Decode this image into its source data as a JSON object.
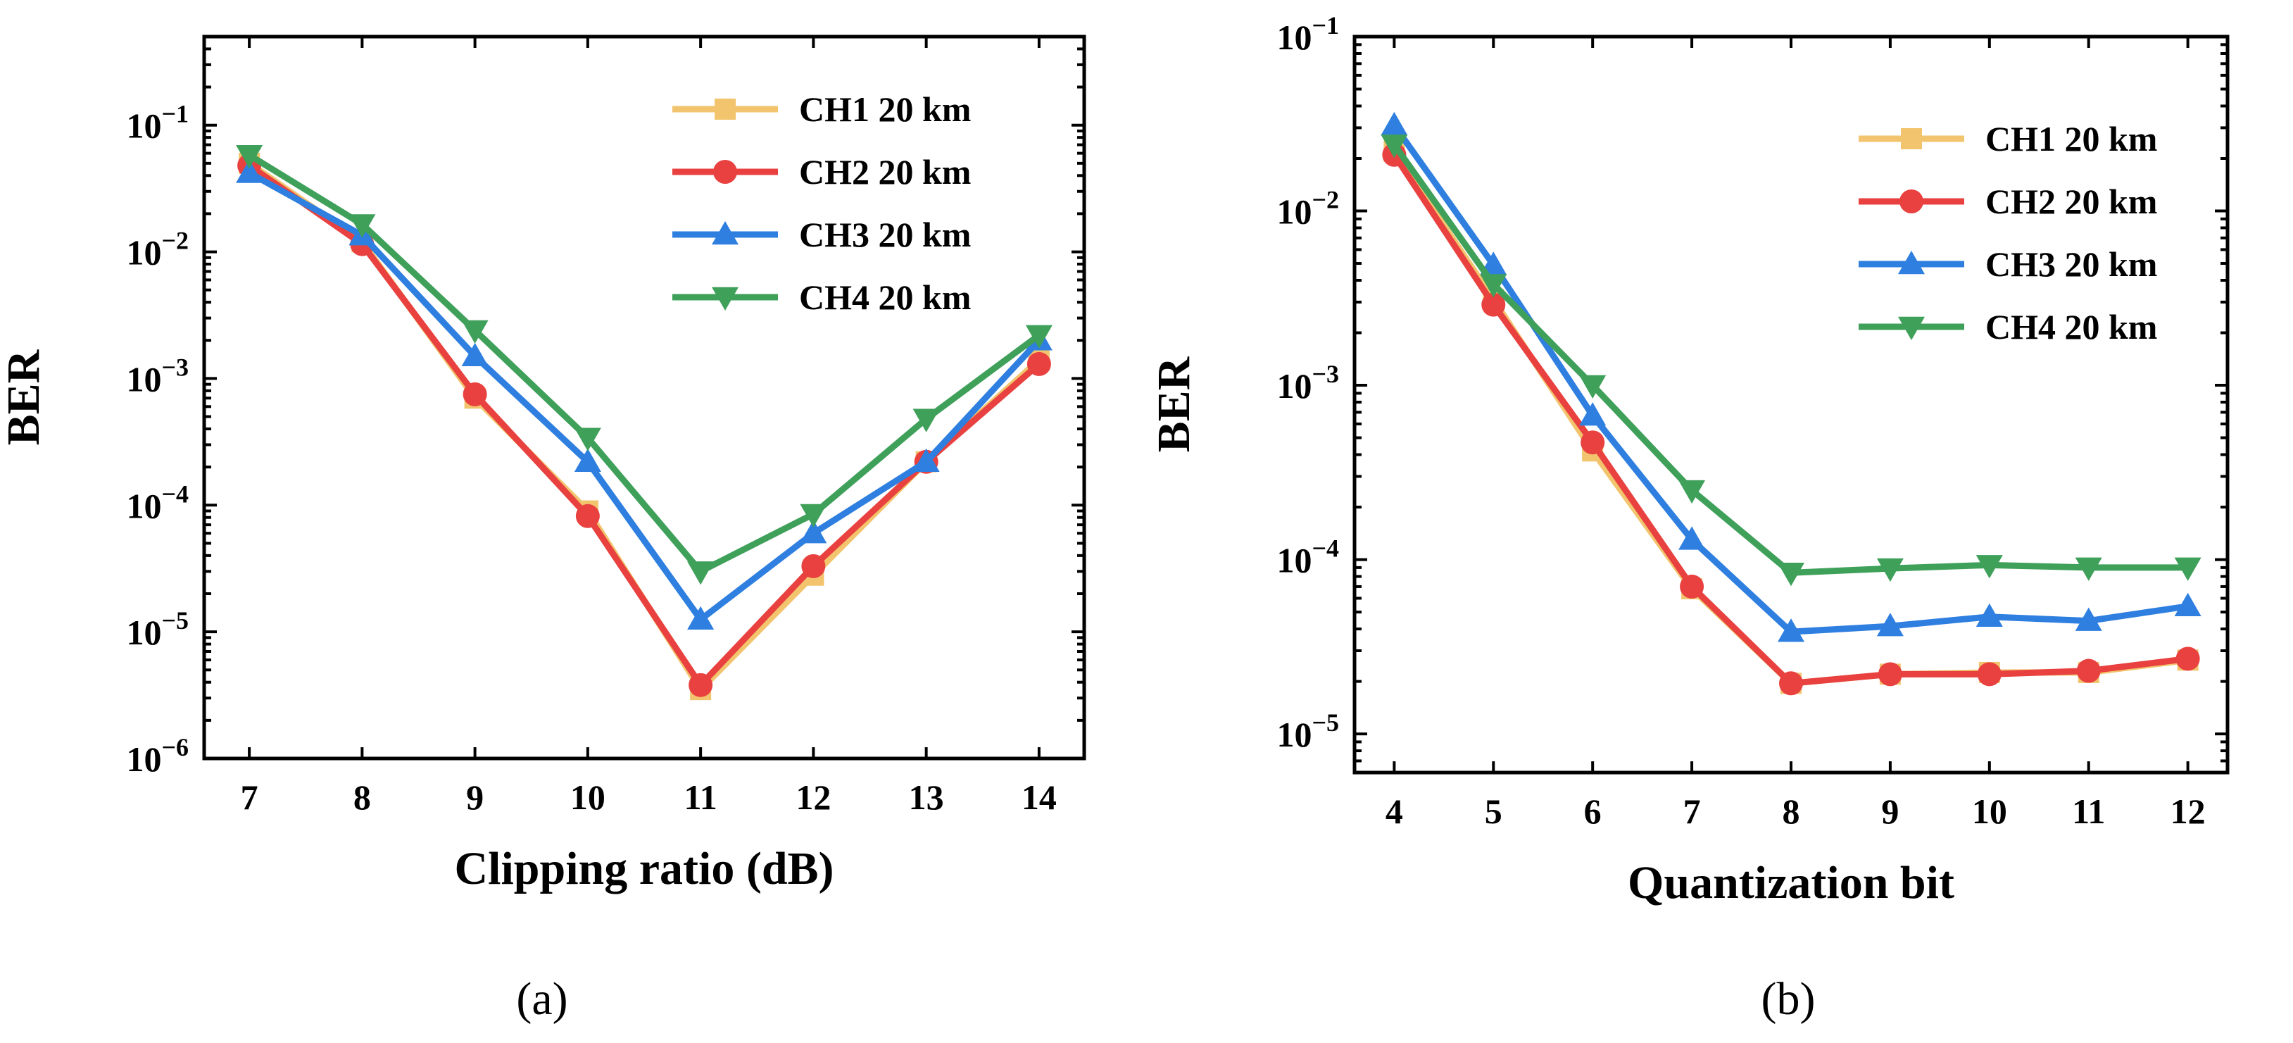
{
  "figure": {
    "panels": [
      "(a)",
      "(b)"
    ]
  },
  "legend_entries": [
    "CH1 20 km",
    "CH2 20 km",
    "CH3 20 km",
    "CH4 20 km"
  ],
  "colors": {
    "CH1": "#f2c46d",
    "CH2": "#e8413f",
    "CH3": "#2f7fe0",
    "CH4": "#3fa05a",
    "axis": "#000000",
    "background": "#ffffff"
  },
  "markers": {
    "CH1": "square",
    "CH2": "circle",
    "CH3": "triangle-up",
    "CH4": "triangle-down"
  },
  "chart_data": [
    {
      "type": "line",
      "panel_label": "(a)",
      "title": "",
      "xlabel": "Clipping ratio (dB)",
      "ylabel": "BER",
      "yscale": "log",
      "ylim": [
        1e-06,
        0.5
      ],
      "xlim": [
        6.6,
        14.4
      ],
      "grid": false,
      "legend_position": "top-right",
      "x": [
        7,
        8,
        9,
        10,
        11,
        12,
        13,
        14
      ],
      "x_ticks": [
        "7",
        "8",
        "9",
        "10",
        "11",
        "12",
        "13",
        "14"
      ],
      "y_ticks": [
        {
          "value": 1e-06,
          "base": "10",
          "exp": "−6"
        },
        {
          "value": 1e-05,
          "base": "10",
          "exp": "−5"
        },
        {
          "value": 0.0001,
          "base": "10",
          "exp": "−4"
        },
        {
          "value": 0.001,
          "base": "10",
          "exp": "−3"
        },
        {
          "value": 0.01,
          "base": "10",
          "exp": "−2"
        },
        {
          "value": 0.1,
          "base": "10",
          "exp": "−1"
        }
      ],
      "series": [
        {
          "name": "CH1 20 km",
          "key": "CH1",
          "values": [
            0.05,
            0.012,
            0.0007,
            9e-05,
            3.5e-06,
            2.8e-05,
            0.00022,
            0.0014
          ]
        },
        {
          "name": "CH2 20 km",
          "key": "CH2",
          "values": [
            0.048,
            0.0115,
            0.00075,
            8.2e-05,
            3.8e-06,
            3.3e-05,
            0.00022,
            0.0013
          ]
        },
        {
          "name": "CH3 20 km",
          "key": "CH3",
          "values": [
            0.042,
            0.0135,
            0.0015,
            0.00022,
            1.25e-05,
            6e-05,
            0.00022,
            0.002
          ]
        },
        {
          "name": "CH4 20 km",
          "key": "CH4",
          "values": [
            0.058,
            0.0165,
            0.0024,
            0.00034,
            3e-05,
            8.5e-05,
            0.00048,
            0.0022
          ]
        }
      ]
    },
    {
      "type": "line",
      "panel_label": "(b)",
      "title": "",
      "xlabel": "Quantization bit",
      "ylabel": "BER",
      "yscale": "log",
      "ylim": [
        6e-06,
        0.1
      ],
      "xlim": [
        3.6,
        12.4
      ],
      "grid": false,
      "legend_position": "top-right",
      "x": [
        4,
        5,
        6,
        7,
        8,
        9,
        10,
        11,
        12
      ],
      "x_ticks": [
        "4",
        "5",
        "6",
        "7",
        "8",
        "9",
        "10",
        "11",
        "12"
      ],
      "y_ticks": [
        {
          "value": 1e-05,
          "base": "10",
          "exp": "−5"
        },
        {
          "value": 0.0001,
          "base": "10",
          "exp": "−4"
        },
        {
          "value": 0.001,
          "base": "10",
          "exp": "−3"
        },
        {
          "value": 0.01,
          "base": "10",
          "exp": "−2"
        },
        {
          "value": 0.1,
          "base": "10",
          "exp": "−1"
        }
      ],
      "series": [
        {
          "name": "CH1 20 km",
          "key": "CH1",
          "values": [
            0.022,
            0.0031,
            0.00042,
            6.8e-05,
            1.95e-05,
            2.2e-05,
            2.25e-05,
            2.25e-05,
            2.65e-05
          ]
        },
        {
          "name": "CH2 20 km",
          "key": "CH2",
          "values": [
            0.021,
            0.0029,
            0.00047,
            7e-05,
            1.95e-05,
            2.2e-05,
            2.2e-05,
            2.3e-05,
            2.7e-05
          ]
        },
        {
          "name": "CH3 20 km",
          "key": "CH3",
          "values": [
            0.031,
            0.0049,
            0.00067,
            0.00013,
            3.85e-05,
            4.15e-05,
            4.7e-05,
            4.45e-05,
            5.4e-05
          ]
        },
        {
          "name": "CH4 20 km",
          "key": "CH4",
          "values": [
            0.024,
            0.0038,
            0.001,
            0.00025,
            8.4e-05,
            8.9e-05,
            9.3e-05,
            9e-05,
            9e-05
          ]
        }
      ]
    }
  ]
}
